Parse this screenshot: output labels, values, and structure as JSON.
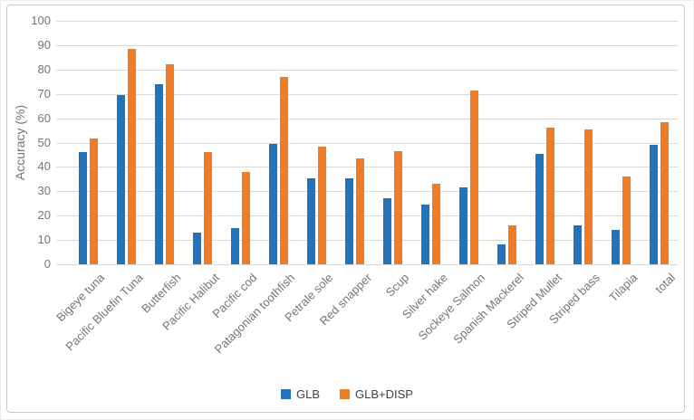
{
  "chart_data": {
    "type": "bar",
    "title": "",
    "xlabel": "",
    "ylabel": "Accuracy (%)",
    "ylim": [
      0,
      100
    ],
    "y_ticks": [
      0,
      10,
      20,
      30,
      40,
      50,
      60,
      70,
      80,
      90,
      100
    ],
    "grid": "horizontal",
    "legend_position": "bottom-center",
    "categories": [
      "Bigeye tuna",
      "Pacific Bluefin Tuna",
      "Butterfish",
      "Pacific Halibut",
      "Pacific cod",
      "Patagonian toothfish",
      "Petrale sole",
      "Red snapper",
      "Scup",
      "Silver hake",
      "Sockeye Salmon",
      "Spanish Mackerel",
      "Striped Mullet",
      "Striped bass",
      "Tilapia",
      "total"
    ],
    "series": [
      {
        "name": "GLB",
        "color": "#2273B9",
        "values": [
          46,
          69.5,
          74,
          13,
          15,
          49.5,
          35.5,
          35.5,
          27,
          24.5,
          31.5,
          8,
          45.5,
          16,
          14,
          49
        ]
      },
      {
        "name": "GLB+DISP",
        "color": "#EF7D28",
        "values": [
          51.5,
          88.5,
          82,
          46,
          38,
          77,
          48.5,
          43.5,
          46.5,
          33,
          71.5,
          16,
          56,
          55.5,
          36,
          58.5
        ]
      }
    ]
  },
  "colors": {
    "gridline": "#d9d9d9",
    "axis_text": "#757575",
    "legend_text": "#3f3f3f",
    "frame_border": "#c9c9c9"
  }
}
